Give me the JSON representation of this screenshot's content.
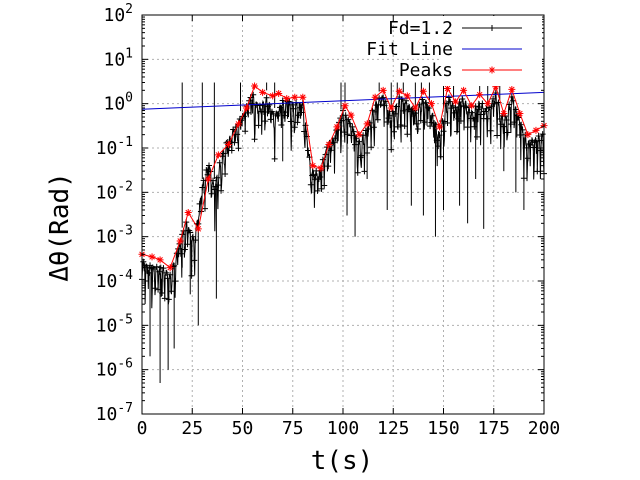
{
  "chart_data": {
    "type": "line",
    "xlabel": "t(s)",
    "ylabel": "Δθ(Rad)",
    "xlim": [
      0,
      200
    ],
    "ylim": [
      1e-07,
      100
    ],
    "yscale": "log",
    "grid": true,
    "legend_position": "top-right",
    "x_ticks": [
      "0",
      "25",
      "50",
      "75",
      "100",
      "125",
      "150",
      "175",
      "200"
    ],
    "y_tick_base": "10",
    "y_tick_exponents": [
      "-7",
      "-6",
      "-5",
      "-4",
      "-3",
      "-2",
      "-1",
      "0",
      "1",
      "2"
    ],
    "series": [
      {
        "name": "Fd=1.2",
        "color": "#000000",
        "marker": "plus",
        "envelope": [
          [
            0,
            0.0004
          ],
          [
            5,
            0.0003
          ],
          [
            10,
            0.0003
          ],
          [
            14,
            0.0002
          ],
          [
            18,
            0.0008
          ],
          [
            22,
            0.0032
          ],
          [
            26,
            0.0012
          ],
          [
            30,
            0.02
          ],
          [
            33,
            0.07
          ],
          [
            36,
            0.02
          ],
          [
            40,
            0.12
          ],
          [
            45,
            0.35
          ],
          [
            50,
            0.8
          ],
          [
            55,
            2.5
          ],
          [
            58,
            1.2
          ],
          [
            62,
            2.0
          ],
          [
            66,
            0.8
          ],
          [
            70,
            1.7
          ],
          [
            75,
            1.5
          ],
          [
            80,
            1.5
          ],
          [
            84,
            0.05
          ],
          [
            88,
            0.04
          ],
          [
            92,
            0.15
          ],
          [
            96,
            0.3
          ],
          [
            100,
            1.0
          ],
          [
            104,
            0.5
          ],
          [
            108,
            0.2
          ],
          [
            112,
            0.4
          ],
          [
            116,
            1.6
          ],
          [
            120,
            2.2
          ],
          [
            124,
            0.8
          ],
          [
            128,
            2.0
          ],
          [
            132,
            1.6
          ],
          [
            136,
            0.9
          ],
          [
            140,
            2.0
          ],
          [
            144,
            1.0
          ],
          [
            148,
            0.3
          ],
          [
            152,
            2.2
          ],
          [
            156,
            1.2
          ],
          [
            160,
            2.0
          ],
          [
            164,
            0.9
          ],
          [
            168,
            1.7
          ],
          [
            172,
            1.0
          ],
          [
            176,
            2.5
          ],
          [
            180,
            0.6
          ],
          [
            184,
            2.2
          ],
          [
            188,
            0.6
          ],
          [
            192,
            0.2
          ],
          [
            196,
            0.25
          ],
          [
            200,
            0.3
          ]
        ],
        "dips": [
          [
            4,
            2e-06
          ],
          [
            9,
            5e-07
          ],
          [
            13,
            1e-06
          ],
          [
            16,
            3e-06
          ],
          [
            20,
            0.0002
          ],
          [
            24,
            5e-05
          ],
          [
            28,
            1e-05
          ],
          [
            37,
            4e-05
          ],
          [
            55,
            0.6
          ],
          [
            70,
            0.05
          ],
          [
            86,
            0.01
          ],
          [
            102,
            0.003
          ],
          [
            106,
            0.001
          ],
          [
            112,
            0.02
          ],
          [
            122,
            0.004
          ],
          [
            134,
            0.005
          ],
          [
            140,
            0.003
          ],
          [
            146,
            0.001
          ],
          [
            150,
            0.004
          ],
          [
            158,
            0.005
          ],
          [
            162,
            0.002
          ],
          [
            166,
            0.02
          ],
          [
            170,
            0.0015
          ],
          [
            180,
            0.03
          ],
          [
            186,
            0.01
          ],
          [
            190,
            0.004
          ]
        ],
        "spikes": [
          [
            20,
            3.0
          ],
          [
            30,
            3.0
          ],
          [
            36,
            3.0
          ],
          [
            49,
            3.0
          ],
          [
            62,
            3.0
          ],
          [
            66,
            3.0
          ],
          [
            99,
            3.0
          ],
          [
            101,
            3.0
          ],
          [
            118,
            3.0
          ],
          [
            124,
            3.0
          ],
          [
            127,
            3.0
          ],
          [
            130,
            3.0
          ],
          [
            136,
            3.0
          ],
          [
            139,
            3.0
          ],
          [
            143,
            3.0
          ],
          [
            150,
            3.0
          ],
          [
            155,
            3.0
          ],
          [
            168,
            3.0
          ],
          [
            172,
            3.0
          ],
          [
            178,
            3.0
          ]
        ]
      },
      {
        "name": "Fit Line",
        "color": "#0000cc",
        "x": [
          0,
          200
        ],
        "y": [
          0.75,
          1.8
        ]
      },
      {
        "name": "Peaks",
        "color": "#ff0000",
        "marker": "star",
        "x": [
          0,
          5,
          9,
          14,
          19,
          23,
          28,
          33,
          38,
          43,
          48,
          52,
          56,
          60,
          65,
          68,
          72,
          76,
          80,
          85,
          89,
          93,
          97,
          101,
          104,
          108,
          112,
          116,
          120,
          124,
          128,
          132,
          136,
          140,
          144,
          148,
          152,
          156,
          160,
          164,
          168,
          172,
          176,
          180,
          184,
          188,
          192,
          196,
          200
        ],
        "y": [
          0.0004,
          0.00035,
          0.0003,
          0.0002,
          0.0008,
          0.0035,
          0.0015,
          0.02,
          0.07,
          0.12,
          0.35,
          0.8,
          2.5,
          1.8,
          1.5,
          1.7,
          1.3,
          1.4,
          1.4,
          0.04,
          0.035,
          0.12,
          0.3,
          0.9,
          0.55,
          0.2,
          0.35,
          1.4,
          2.0,
          0.8,
          1.9,
          1.5,
          0.8,
          1.9,
          1.0,
          0.3,
          2.2,
          1.1,
          2.0,
          0.9,
          1.6,
          1.0,
          2.4,
          0.6,
          2.1,
          0.6,
          0.2,
          0.25,
          0.32
        ]
      }
    ]
  }
}
